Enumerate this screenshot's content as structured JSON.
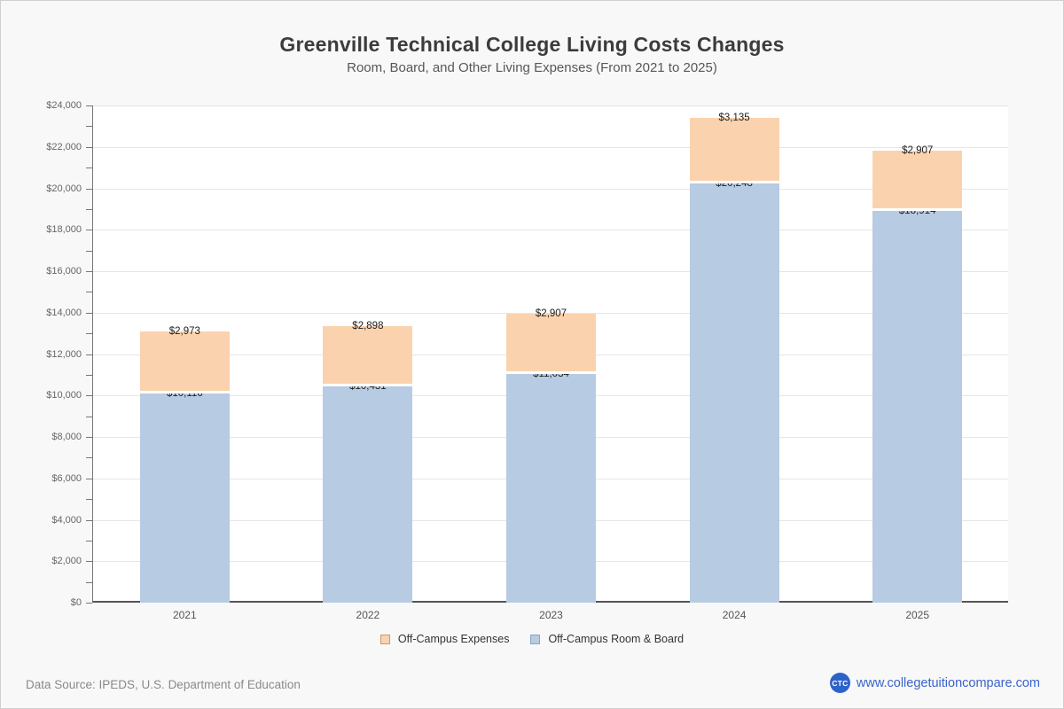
{
  "page": {
    "title": "Greenville Technical College Living Costs Changes",
    "subtitle": "Room, Board, and Other Living Expenses (From 2021 to 2025)"
  },
  "chart_data": {
    "type": "bar",
    "stacked": true,
    "title": "Greenville Technical College Living Costs Changes",
    "subtitle": "Room, Board, and Other Living Expenses (From 2021 to 2025)",
    "categories": [
      "2021",
      "2022",
      "2023",
      "2024",
      "2025"
    ],
    "series": [
      {
        "name": "Off-Campus Room & Board",
        "color": "#b7cbe2",
        "values": [
          10116,
          10431,
          11034,
          20248,
          18914
        ]
      },
      {
        "name": "Off-Campus Expenses",
        "color": "#fad3ae",
        "values": [
          2973,
          2898,
          2907,
          3135,
          2907
        ]
      }
    ],
    "data_labels": {
      "Off-Campus Room & Board": [
        "$10,116",
        "$10,431",
        "$11,034",
        "$20,248",
        "$18,914"
      ],
      "Off-Campus Expenses": [
        "$2,973",
        "$2,898",
        "$2,907",
        "$3,135",
        "$2,907"
      ]
    },
    "ylabel": "",
    "xlabel": "",
    "ylim": [
      0,
      24000
    ],
    "ytick_step": 2000,
    "ytick_minor_step": 1000,
    "ytick_labels": [
      "$0",
      "$2,000",
      "$4,000",
      "$6,000",
      "$8,000",
      "$10,000",
      "$12,000",
      "$14,000",
      "$16,000",
      "$18,000",
      "$20,000",
      "$22,000",
      "$24,000"
    ],
    "grid": true,
    "legend_position": "bottom"
  },
  "legend": [
    {
      "label": "Off-Campus Expenses",
      "color": "#fad3ae",
      "border": "#c49a70"
    },
    {
      "label": "Off-Campus Room & Board",
      "color": "#b7cbe2",
      "border": "#8aa4c4"
    }
  ],
  "footer": {
    "source": "Data Source: IPEDS, U.S. Department of Education",
    "logo_text": "CTC",
    "website": "www.collegetuitioncompare.com",
    "link_color": "#3b63c9",
    "logo_color": "#2d62c9"
  }
}
